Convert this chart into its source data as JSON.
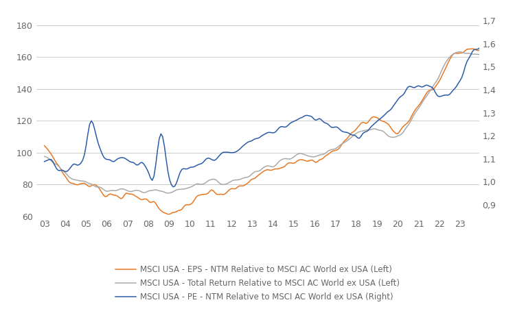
{
  "background_color": "#ffffff",
  "left_ylim": [
    60,
    190
  ],
  "right_ylim": [
    0.85,
    1.75
  ],
  "left_yticks": [
    60,
    80,
    100,
    120,
    140,
    160,
    180
  ],
  "right_yticks": [
    0.9,
    1.0,
    1.1,
    1.2,
    1.3,
    1.4,
    1.5,
    1.6,
    1.7
  ],
  "right_yticklabels": [
    "0,9",
    "1,0",
    "1,1",
    "1,2",
    "1,3",
    "1,4",
    "1,5",
    "1,6",
    "1,7"
  ],
  "left_yticklabels": [
    "60",
    "80",
    "100",
    "120",
    "140",
    "160",
    "180"
  ],
  "xtick_labels": [
    "03",
    "04",
    "05",
    "06",
    "07",
    "08",
    "09",
    "10",
    "11",
    "12",
    "13",
    "14",
    "15",
    "16",
    "17",
    "18",
    "19",
    "20",
    "21",
    "22",
    "23"
  ],
  "eps_color": "#E87722",
  "total_return_color": "#A9A9A9",
  "pe_color": "#2B5BA8",
  "legend_eps": "MSCI USA - EPS - NTM Relative to MSCI AC World ex USA (Left)",
  "legend_tr": "MSCI USA - Total Return Relative to MSCI AC World ex USA (Left)",
  "legend_pe": "MSCI USA - PE - NTM Relative to MSCI AC World ex USA (Right)",
  "grid_color": "#CCCCCC",
  "line_width": 1.1,
  "tick_fontsize": 9,
  "legend_fontsize": 8.5
}
